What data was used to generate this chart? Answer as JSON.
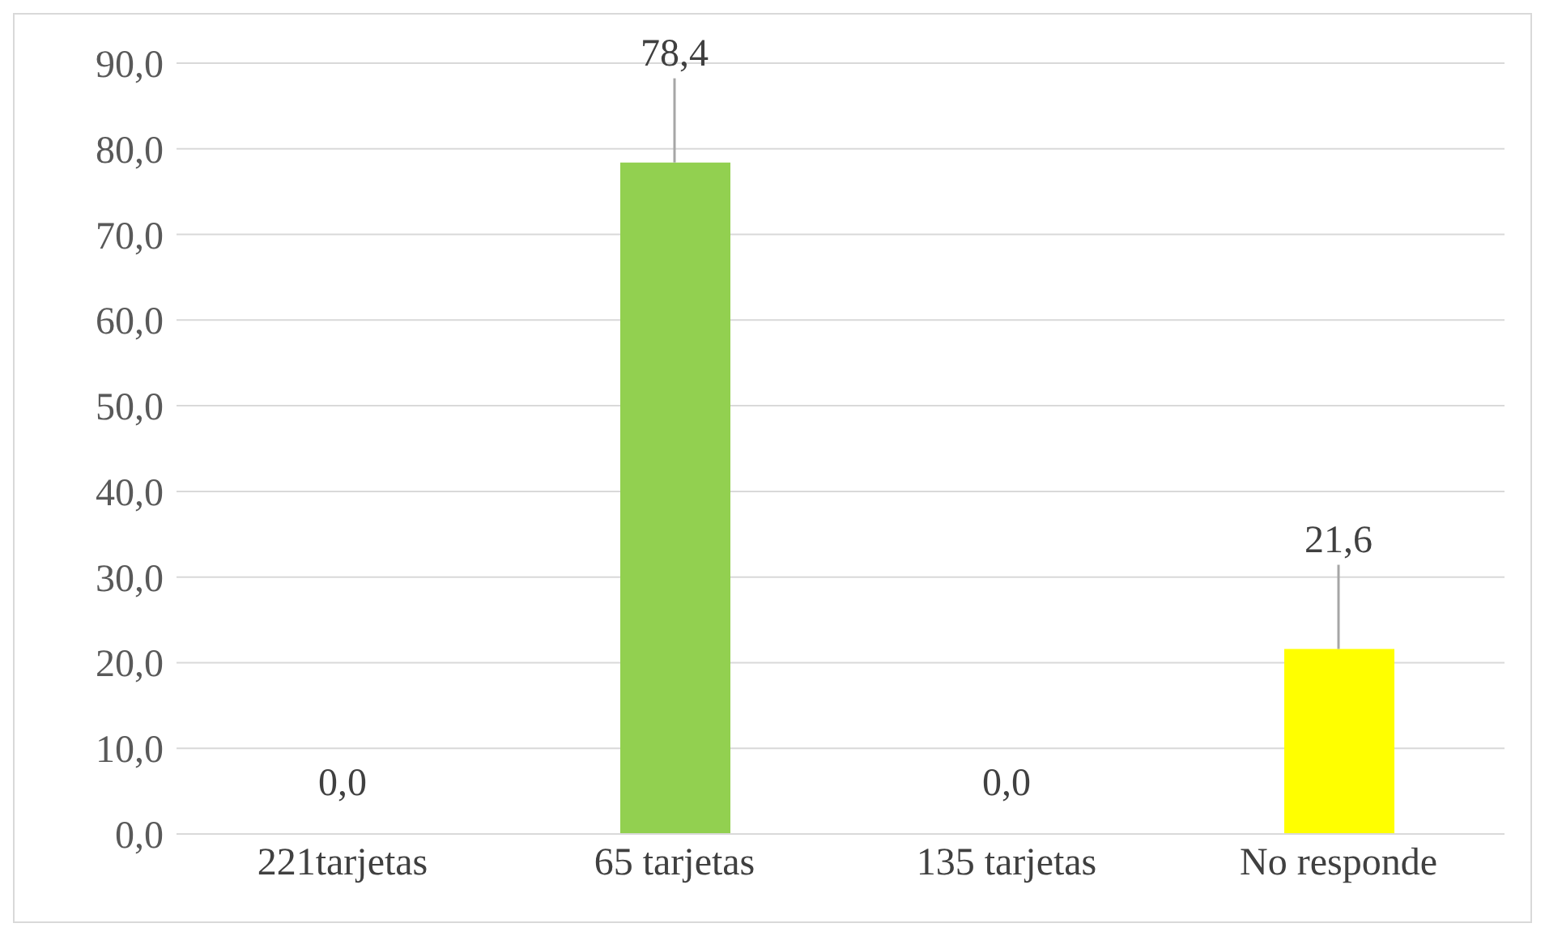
{
  "chart_data": {
    "type": "bar",
    "categories": [
      "221tarjetas",
      "65 tarjetas",
      "135 tarjetas",
      "No responde"
    ],
    "values": [
      0,
      78.4,
      0,
      21.6
    ],
    "colors": [
      "#92d050",
      "#92d050",
      "#ffff00",
      "#ffff00"
    ],
    "value_labels": [
      "0,0",
      "78,4",
      "0,0",
      "21,6"
    ],
    "ylim": [
      0,
      90
    ],
    "yticks": [
      {
        "value": 0,
        "label": "0,0"
      },
      {
        "value": 10,
        "label": "10,0"
      },
      {
        "value": 20,
        "label": "20,0"
      },
      {
        "value": 30,
        "label": "30,0"
      },
      {
        "value": 40,
        "label": "40,0"
      },
      {
        "value": 50,
        "label": "50,0"
      },
      {
        "value": 60,
        "label": "60,0"
      },
      {
        "value": 70,
        "label": "70,0"
      },
      {
        "value": 80,
        "label": "80,0"
      },
      {
        "value": 90,
        "label": "90,0"
      }
    ],
    "grid": "y"
  }
}
